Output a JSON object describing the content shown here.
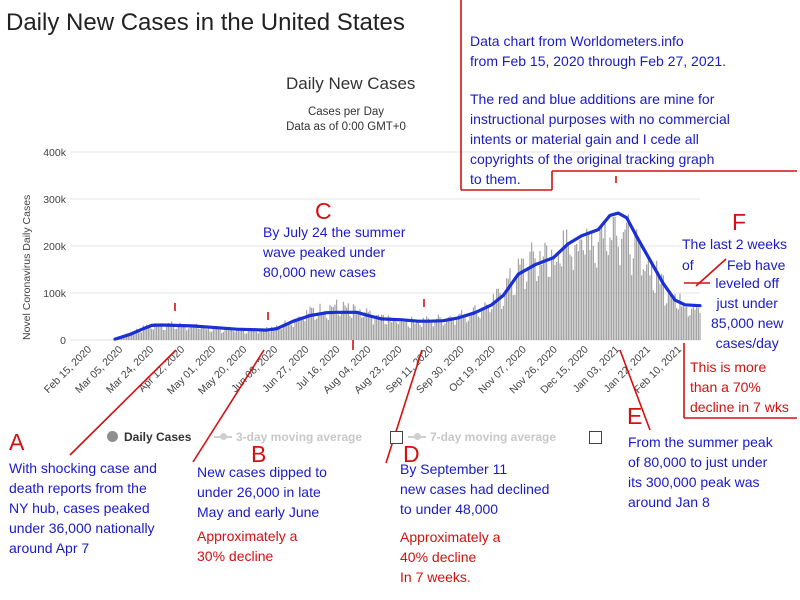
{
  "page": {
    "title": "Daily New Cases in the United States"
  },
  "chart_data": {
    "type": "bar",
    "title": "Daily New Cases",
    "subtitle_lines": [
      "Cases per Day",
      "Data as of 0:00 GMT+0"
    ],
    "ylabel": "Novel Coronavirus Daily Cases",
    "ylim": [
      0,
      400000
    ],
    "y_ticks": [
      {
        "value": 0,
        "label": "0"
      },
      {
        "value": 100000,
        "label": "100k"
      },
      {
        "value": 200000,
        "label": "200k"
      },
      {
        "value": 300000,
        "label": "300k"
      },
      {
        "value": 400000,
        "label": "400k"
      }
    ],
    "x_start": "2020-02-15",
    "x_end": "2021-02-27",
    "x_tick_labels": [
      "Feb 15, 2020",
      "Mar 05, 2020",
      "Mar 24, 2020",
      "Apr 12, 2020",
      "May 01, 2020",
      "May 20, 2020",
      "Jun 08, 2020",
      "Jun 27, 2020",
      "Jul 16, 2020",
      "Aug 04, 2020",
      "Aug 23, 2020",
      "Sep 11, 2020",
      "Sep 30, 2020",
      "Oct 19, 2020",
      "Nov 07, 2020",
      "Nov 26, 2020",
      "Dec 15, 2020",
      "Jan 03, 2021",
      "Jan 22, 2021",
      "Feb 10, 2021"
    ],
    "series": [
      {
        "name": "Daily Cases",
        "color": "#9a9a9a",
        "values_description": "daily bars",
        "anchors": [
          [
            "2020-02-15",
            0
          ],
          [
            "2020-03-01",
            100
          ],
          [
            "2020-03-12",
            400
          ],
          [
            "2020-03-20",
            12000
          ],
          [
            "2020-03-28",
            25000
          ],
          [
            "2020-04-04",
            32000
          ],
          [
            "2020-04-10",
            35000
          ],
          [
            "2020-04-24",
            32000
          ],
          [
            "2020-05-15",
            25000
          ],
          [
            "2020-06-01",
            22000
          ],
          [
            "2020-06-10",
            22000
          ],
          [
            "2020-06-25",
            40000
          ],
          [
            "2020-07-10",
            65000
          ],
          [
            "2020-07-24",
            75000
          ],
          [
            "2020-08-08",
            60000
          ],
          [
            "2020-08-25",
            45000
          ],
          [
            "2020-09-11",
            42000
          ],
          [
            "2020-09-25",
            48000
          ],
          [
            "2020-10-10",
            58000
          ],
          [
            "2020-10-25",
            80000
          ],
          [
            "2020-11-07",
            140000
          ],
          [
            "2020-11-20",
            185000
          ],
          [
            "2020-12-01",
            185000
          ],
          [
            "2020-12-15",
            225000
          ],
          [
            "2020-12-28",
            230000
          ],
          [
            "2021-01-08",
            270000
          ],
          [
            "2021-01-20",
            200000
          ],
          [
            "2021-02-01",
            145000
          ],
          [
            "2021-02-15",
            85000
          ],
          [
            "2021-02-27",
            72000
          ]
        ]
      },
      {
        "name": "7-day moving average",
        "color": "#1a2fd6",
        "points": [
          [
            "2020-03-13",
            2000
          ],
          [
            "2020-03-22",
            12000
          ],
          [
            "2020-03-30",
            24000
          ],
          [
            "2020-04-04",
            31000
          ],
          [
            "2020-04-10",
            32000
          ],
          [
            "2020-04-18",
            31000
          ],
          [
            "2020-04-28",
            30000
          ],
          [
            "2020-05-10",
            27000
          ],
          [
            "2020-05-25",
            23000
          ],
          [
            "2020-06-05",
            22000
          ],
          [
            "2020-06-12",
            21000
          ],
          [
            "2020-06-18",
            24000
          ],
          [
            "2020-06-28",
            40000
          ],
          [
            "2020-07-08",
            52000
          ],
          [
            "2020-07-18",
            58000
          ],
          [
            "2020-07-24",
            59000
          ],
          [
            "2020-08-05",
            59000
          ],
          [
            "2020-08-12",
            52000
          ],
          [
            "2020-08-20",
            45000
          ],
          [
            "2020-09-01",
            43000
          ],
          [
            "2020-09-11",
            40000
          ],
          [
            "2020-09-18",
            40000
          ],
          [
            "2020-09-26",
            41000
          ],
          [
            "2020-10-05",
            47000
          ],
          [
            "2020-10-15",
            58000
          ],
          [
            "2020-10-25",
            75000
          ],
          [
            "2020-11-01",
            95000
          ],
          [
            "2020-11-10",
            140000
          ],
          [
            "2020-11-20",
            160000
          ],
          [
            "2020-12-01",
            175000
          ],
          [
            "2020-12-10",
            205000
          ],
          [
            "2020-12-18",
            222000
          ],
          [
            "2020-12-28",
            235000
          ],
          [
            "2021-01-04",
            265000
          ],
          [
            "2021-01-09",
            270000
          ],
          [
            "2021-01-14",
            260000
          ],
          [
            "2021-01-20",
            220000
          ],
          [
            "2021-01-28",
            170000
          ],
          [
            "2021-02-05",
            120000
          ],
          [
            "2021-02-12",
            85000
          ],
          [
            "2021-02-18",
            75000
          ],
          [
            "2021-02-27",
            73000
          ]
        ]
      }
    ],
    "legend": [
      {
        "label": "Daily Cases",
        "active": true
      },
      {
        "label": "3-day moving average",
        "active": false
      },
      {
        "label": "7-day moving average",
        "active": false
      }
    ]
  },
  "annotations": {
    "source_note": [
      "Data chart from Worldometers.info",
      "from Feb 15, 2020 through Feb 27, 2021.",
      "",
      "The red and blue additions are mine for",
      "instructional purposes with no commercial",
      "intents or material gain and I cede all",
      "copyrights of the original tracking graph",
      "to them."
    ],
    "A": {
      "letter": "A",
      "text": [
        "With shocking case and",
        "death reports from the",
        "NY hub, cases peaked",
        "under 36,000 nationally",
        "around Apr 7"
      ]
    },
    "B": {
      "letter": "B",
      "text": [
        "New cases dipped to",
        "under 26,000 in late",
        "May and early June"
      ],
      "red_text": [
        "Approximately a",
        "30% decline"
      ]
    },
    "C": {
      "letter": "C",
      "text": [
        "By July 24 the summer",
        "wave peaked under",
        "80,000 new cases"
      ]
    },
    "D": {
      "letter": "D",
      "text": [
        "By September 11",
        "new cases had declined",
        "to under 48,000"
      ],
      "red_text": [
        "Approximately a",
        "40% decline",
        "In 7 weeks."
      ]
    },
    "E": {
      "letter": "E",
      "text": [
        "From the summer peak",
        "of 80,000 to just under",
        "its 300,000 peak was",
        "around Jan 8"
      ]
    },
    "F": {
      "letter": "F",
      "text": [
        "The last 2 weeks",
        "of",
        "Feb have",
        "leveled off",
        "just under",
        "85,000 new",
        "cases/day"
      ],
      "red_text": [
        "This is more",
        "than a 70%",
        "decline in 7 wks"
      ]
    }
  }
}
